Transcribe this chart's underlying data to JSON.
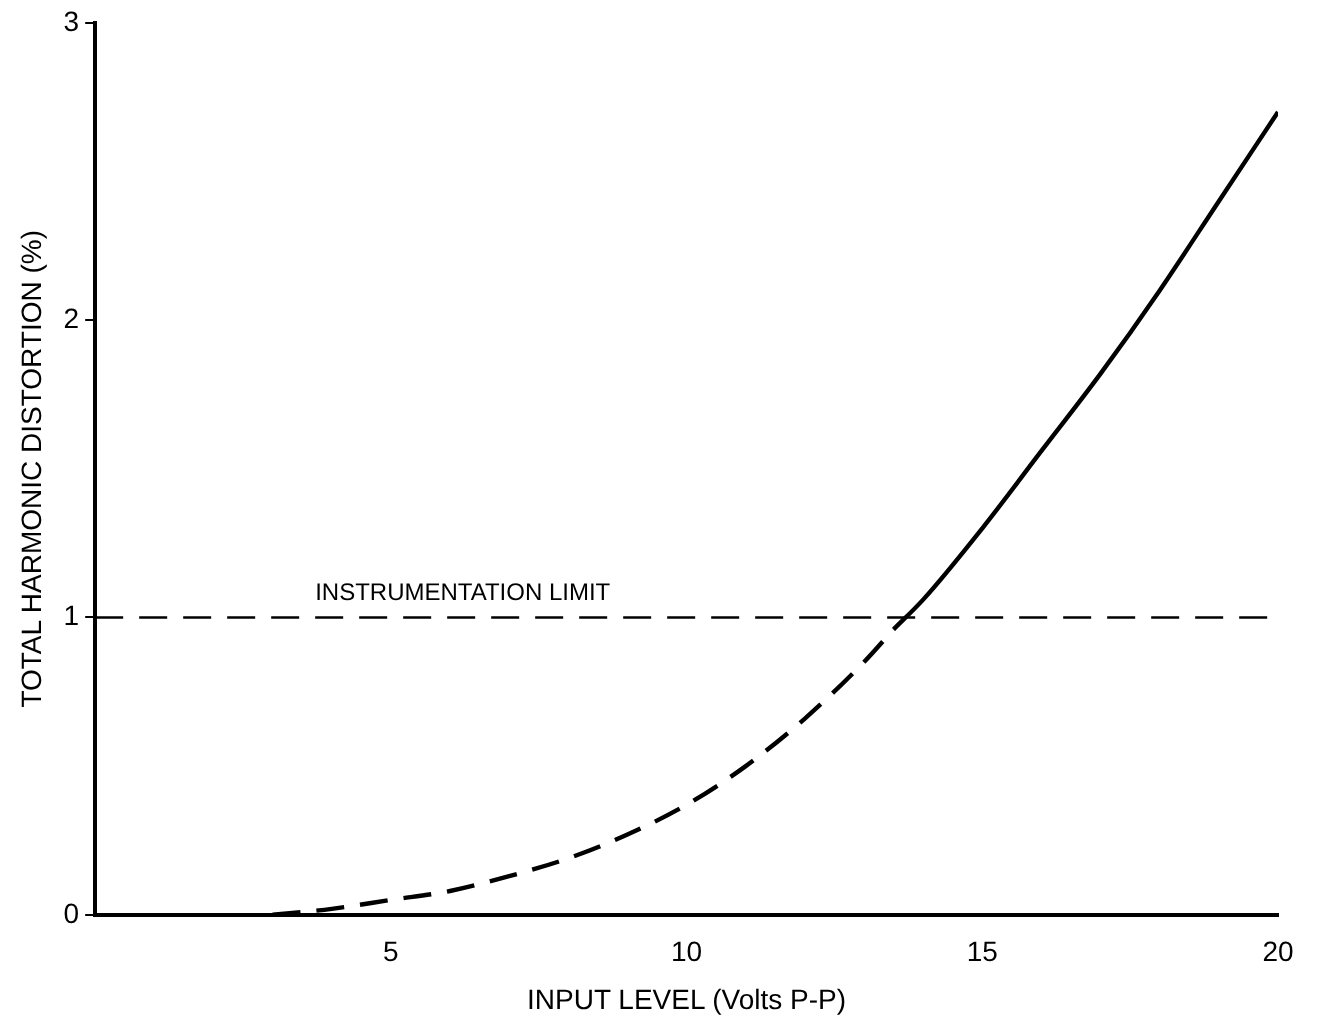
{
  "chart_data": {
    "type": "line",
    "xlabel": "INPUT LEVEL (Volts P-P)",
    "ylabel": "TOTAL HARMONIC DISTORTION (%)",
    "xlim": [
      0,
      20
    ],
    "xticks": [
      5,
      10,
      15,
      20
    ],
    "ylim": [
      0,
      3
    ],
    "yticks": [
      0,
      1,
      2,
      3
    ],
    "grid": false,
    "legend": false,
    "marker": "none",
    "series": [
      {
        "color": "#000000",
        "line_style": "dashed",
        "x": [
          3,
          4,
          5,
          6,
          7,
          8,
          9,
          10,
          11,
          12,
          13,
          13.5
        ],
        "values": [
          0,
          0.02,
          0.05,
          0.08,
          0.13,
          0.19,
          0.27,
          0.37,
          0.5,
          0.66,
          0.85,
          0.96
        ]
      },
      {
        "color": "#000000",
        "line_style": "solid",
        "x": [
          13.5,
          14,
          15,
          16,
          17,
          18,
          19,
          20
        ],
        "values": [
          0.96,
          1.06,
          1.3,
          1.56,
          1.82,
          2.1,
          2.4,
          2.7
        ]
      }
    ],
    "ref_lines": [
      {
        "axis": "y",
        "value": 1,
        "label": "INSTRUMENTATION LIMIT",
        "color": "#000000",
        "line_style": "dashed"
      }
    ]
  }
}
